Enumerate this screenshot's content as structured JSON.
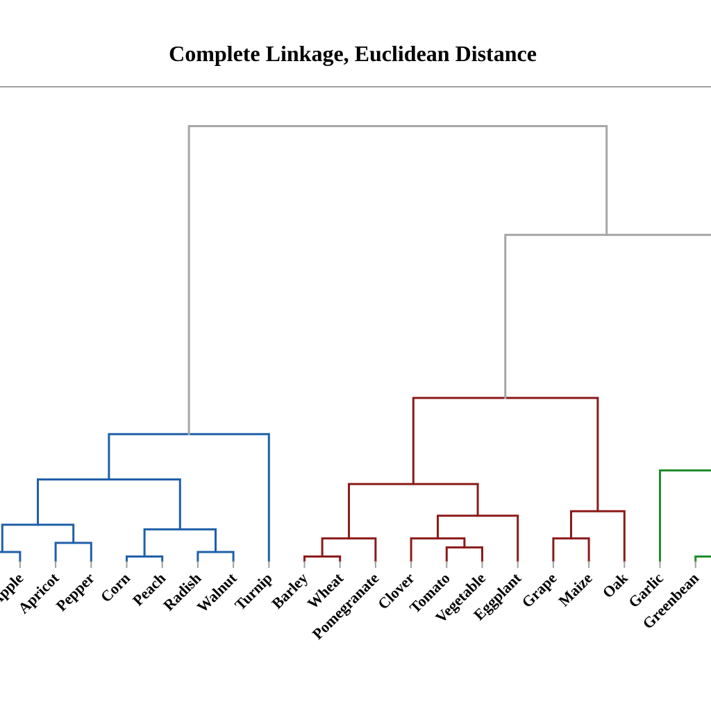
{
  "chart_data": {
    "type": "dendrogram",
    "title": "Complete Linkage, Euclidean Distance",
    "colors": {
      "root": "#a6a6a6",
      "blue": "#1f5fa8",
      "red": "#8b1a1a",
      "green": "#1e8c2c",
      "axis": "#a0a0a0"
    },
    "leaves": [
      {
        "label": "Apple",
        "x": 1.5
      },
      {
        "label": "Apricot",
        "x": 3.5
      },
      {
        "label": "Pepper",
        "x": 5.5
      },
      {
        "label": "Corn",
        "x": 7.5
      },
      {
        "label": "Peach",
        "x": 9.5
      },
      {
        "label": "Radish",
        "x": 11.5
      },
      {
        "label": "Walnut",
        "x": 13.5
      },
      {
        "label": "Turnip",
        "x": 15.5
      },
      {
        "label": "Barley",
        "x": 17.5
      },
      {
        "label": "Wheat",
        "x": 19.5
      },
      {
        "label": "Pomegranate",
        "x": 21.5
      },
      {
        "label": "Clover",
        "x": 23.5
      },
      {
        "label": "Tomato",
        "x": 25.5
      },
      {
        "label": "Vegetable",
        "x": 27.5
      },
      {
        "label": "Eggplant",
        "x": 29.5
      },
      {
        "label": "Grape",
        "x": 31.5
      },
      {
        "label": "Maize",
        "x": 33.5
      },
      {
        "label": "Oak",
        "x": 35.5
      },
      {
        "label": "Garlic",
        "x": 37.5
      },
      {
        "label": "Greenbean",
        "x": 39.5
      }
    ],
    "links": [
      {
        "color": "blue",
        "points": [
          [
            -0.5,
            0
          ],
          [
            -0.5,
            0.3
          ],
          [
            1.5,
            0.3
          ],
          [
            1.5,
            0
          ]
        ]
      },
      {
        "color": "blue",
        "points": [
          [
            0.5,
            0.3
          ],
          [
            0.5,
            1.2
          ],
          [
            4.5,
            1.2
          ],
          [
            4.5,
            0.6
          ]
        ]
      },
      {
        "color": "blue",
        "points": [
          [
            3.5,
            0
          ],
          [
            3.5,
            0.6
          ],
          [
            5.5,
            0.6
          ],
          [
            5.5,
            0
          ]
        ]
      },
      {
        "color": "blue",
        "points": [
          [
            7.5,
            0
          ],
          [
            7.5,
            0.15
          ],
          [
            9.5,
            0.15
          ],
          [
            9.5,
            0
          ]
        ]
      },
      {
        "color": "blue",
        "points": [
          [
            11.5,
            0
          ],
          [
            11.5,
            0.3
          ],
          [
            13.5,
            0.3
          ],
          [
            13.5,
            0
          ]
        ]
      },
      {
        "color": "blue",
        "points": [
          [
            8.5,
            0.15
          ],
          [
            8.5,
            1.05
          ],
          [
            12.5,
            1.05
          ],
          [
            12.5,
            0.3
          ]
        ]
      },
      {
        "color": "blue",
        "points": [
          [
            2.5,
            1.2
          ],
          [
            2.5,
            2.7
          ],
          [
            10.5,
            2.7
          ],
          [
            10.5,
            1.05
          ]
        ]
      },
      {
        "color": "blue",
        "points": [
          [
            6.5,
            2.7
          ],
          [
            6.5,
            4.2
          ],
          [
            15.5,
            4.2
          ],
          [
            15.5,
            0
          ]
        ]
      },
      {
        "color": "red",
        "points": [
          [
            17.5,
            0
          ],
          [
            17.5,
            0.15
          ],
          [
            19.5,
            0.15
          ],
          [
            19.5,
            0
          ]
        ]
      },
      {
        "color": "red",
        "points": [
          [
            18.5,
            0.15
          ],
          [
            18.5,
            0.75
          ],
          [
            21.5,
            0.75
          ],
          [
            21.5,
            0
          ]
        ]
      },
      {
        "color": "red",
        "points": [
          [
            25.5,
            0
          ],
          [
            25.5,
            0.45
          ],
          [
            27.5,
            0.45
          ],
          [
            27.5,
            0
          ]
        ]
      },
      {
        "color": "red",
        "points": [
          [
            23.5,
            0
          ],
          [
            23.5,
            0.75
          ],
          [
            26.5,
            0.75
          ],
          [
            26.5,
            0.45
          ]
        ]
      },
      {
        "color": "red",
        "points": [
          [
            25,
            0.75
          ],
          [
            25,
            1.5
          ],
          [
            29.5,
            1.5
          ],
          [
            29.5,
            0
          ]
        ]
      },
      {
        "color": "red",
        "points": [
          [
            20,
            0.75
          ],
          [
            20,
            2.55
          ],
          [
            27.25,
            2.55
          ],
          [
            27.25,
            1.5
          ]
        ]
      },
      {
        "color": "red",
        "points": [
          [
            31.5,
            0
          ],
          [
            31.5,
            0.75
          ],
          [
            33.5,
            0.75
          ],
          [
            33.5,
            0
          ]
        ]
      },
      {
        "color": "red",
        "points": [
          [
            32.5,
            0.75
          ],
          [
            32.5,
            1.65
          ],
          [
            35.5,
            1.65
          ],
          [
            35.5,
            0
          ]
        ]
      },
      {
        "color": "red",
        "points": [
          [
            23.625,
            2.55
          ],
          [
            23.625,
            5.4
          ],
          [
            34,
            5.4
          ],
          [
            34,
            1.65
          ]
        ]
      },
      {
        "color": "green",
        "points": [
          [
            39.5,
            0
          ],
          [
            39.5,
            0.15
          ],
          [
            41.5,
            0.15
          ],
          [
            41.5,
            0
          ]
        ]
      },
      {
        "color": "green",
        "points": [
          [
            37.5,
            0
          ],
          [
            37.5,
            3
          ],
          [
            41.5,
            3
          ],
          [
            41.5,
            0.15
          ]
        ]
      },
      {
        "color": "root",
        "points": [
          [
            28.8,
            5.4
          ],
          [
            28.8,
            10.8
          ],
          [
            41.5,
            10.8
          ],
          [
            41.5,
            3
          ]
        ]
      },
      {
        "color": "root",
        "points": [
          [
            11,
            4.2
          ],
          [
            11,
            14.4
          ],
          [
            34.5,
            14.4
          ],
          [
            34.5,
            10.8
          ]
        ]
      }
    ]
  }
}
